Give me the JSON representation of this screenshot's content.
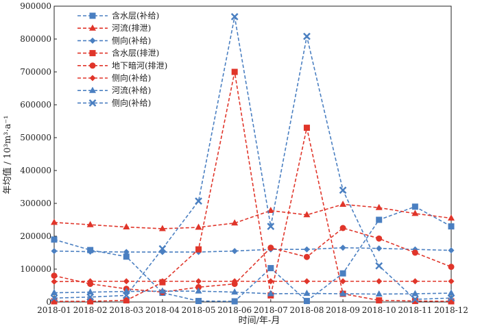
{
  "chart_data": {
    "type": "line",
    "xlabel": "时间/年-月",
    "ylabel": "年均值 / 10³m³·a⁻¹",
    "categories": [
      "2018-01",
      "2018-02",
      "2018-03",
      "2018-04",
      "2018-05",
      "2018-06",
      "2018-07",
      "2018-08",
      "2018-09",
      "2018-10",
      "2018-11",
      "2018-12"
    ],
    "ylim": [
      0,
      900000
    ],
    "yticks": [
      "0",
      "100000",
      "200000",
      "300000",
      "400000",
      "500000",
      "600000",
      "700000",
      "800000",
      "900000"
    ],
    "grid": false,
    "legend_position": "top-left",
    "colors": {
      "blue": "#4a7fc1",
      "red": "#e0352a"
    },
    "series": [
      {
        "name": "含水层(补给)",
        "color": "blue",
        "marker": "square",
        "values": [
          190000,
          158000,
          138000,
          28000,
          3000,
          2000,
          103000,
          3000,
          87000,
          250000,
          290000,
          230000
        ]
      },
      {
        "name": "河流(排泄)",
        "color": "red",
        "marker": "triangle",
        "values": [
          242000,
          235000,
          228000,
          223000,
          227000,
          240000,
          278000,
          265000,
          297000,
          287000,
          269000,
          255000
        ]
      },
      {
        "name": "侧向(补给)",
        "color": "blue",
        "marker": "diamond",
        "values": [
          155000,
          153000,
          152000,
          152000,
          152000,
          155000,
          160000,
          160000,
          165000,
          163000,
          160000,
          157000
        ]
      },
      {
        "name": "含水层(排泄)",
        "color": "red",
        "marker": "square",
        "values": [
          2000,
          2000,
          5000,
          60000,
          160000,
          700000,
          20000,
          530000,
          25000,
          5000,
          3000,
          2000
        ]
      },
      {
        "name": "地下暗河(排泄)",
        "color": "red",
        "marker": "circle",
        "values": [
          80000,
          55000,
          40000,
          30000,
          45000,
          55000,
          165000,
          137000,
          225000,
          193000,
          150000,
          107000
        ]
      },
      {
        "name": "侧向(补给)",
        "color": "red",
        "marker": "diamond",
        "values": [
          62000,
          63000,
          63000,
          63000,
          63000,
          63000,
          63000,
          63000,
          63000,
          63000,
          63000,
          63000
        ]
      },
      {
        "name": "河流(补给)",
        "color": "blue",
        "marker": "triangle",
        "values": [
          28000,
          30000,
          32000,
          33000,
          33000,
          30000,
          25000,
          26000,
          25000,
          24000,
          25000,
          27000
        ]
      },
      {
        "name": "侧向(补给)",
        "color": "blue",
        "marker": "cross",
        "values": [
          12000,
          15000,
          20000,
          162000,
          307000,
          868000,
          230000,
          808000,
          340000,
          110000,
          8000,
          12000
        ]
      }
    ]
  }
}
